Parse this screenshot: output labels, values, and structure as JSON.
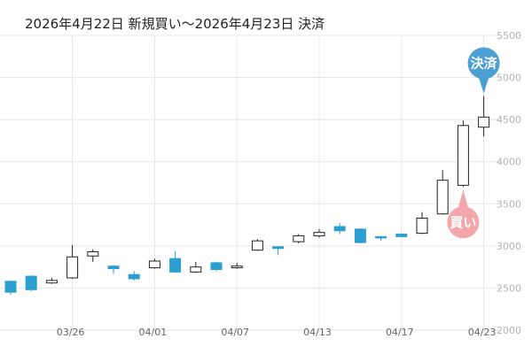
{
  "chart_data": {
    "type": "candlestick",
    "title": "2026年4月22日 新規買い～2026年4月23日 決済",
    "ylim": [
      1900,
      5700
    ],
    "yticks": [
      2000,
      2500,
      3000,
      3500,
      4000,
      4500,
      5000,
      5500
    ],
    "ytick_labels": [
      "2000",
      "2500",
      "3000",
      "3500",
      "4000",
      "4500",
      "5000",
      "5500"
    ],
    "xtick_labels": [
      {
        "label": "03/26",
        "index": 3
      },
      {
        "label": "04/01",
        "index": 7
      },
      {
        "label": "04/07",
        "index": 11
      },
      {
        "label": "04/13",
        "index": 15
      },
      {
        "label": "04/17",
        "index": 19
      },
      {
        "label": "04/23",
        "index": 23
      }
    ],
    "grid": true,
    "up_color": "#ffffff",
    "down_color": "#2a9fd0",
    "candles": [
      {
        "open": 2580,
        "high": 2590,
        "low": 2420,
        "close": 2450
      },
      {
        "open": 2640,
        "high": 2650,
        "low": 2460,
        "close": 2480
      },
      {
        "open": 2560,
        "high": 2620,
        "low": 2550,
        "close": 2590
      },
      {
        "open": 2620,
        "high": 3010,
        "low": 2610,
        "close": 2870
      },
      {
        "open": 2880,
        "high": 2960,
        "low": 2810,
        "close": 2930
      },
      {
        "open": 2760,
        "high": 2770,
        "low": 2670,
        "close": 2730
      },
      {
        "open": 2660,
        "high": 2700,
        "low": 2590,
        "close": 2610
      },
      {
        "open": 2740,
        "high": 2850,
        "low": 2730,
        "close": 2820
      },
      {
        "open": 2850,
        "high": 2940,
        "low": 2680,
        "close": 2690
      },
      {
        "open": 2690,
        "high": 2810,
        "low": 2680,
        "close": 2750
      },
      {
        "open": 2800,
        "high": 2810,
        "low": 2700,
        "close": 2720
      },
      {
        "open": 2740,
        "high": 2800,
        "low": 2730,
        "close": 2760
      },
      {
        "open": 2950,
        "high": 3080,
        "low": 2940,
        "close": 3060
      },
      {
        "open": 2990,
        "high": 3000,
        "low": 2890,
        "close": 2970
      },
      {
        "open": 3050,
        "high": 3140,
        "low": 3030,
        "close": 3120
      },
      {
        "open": 3120,
        "high": 3200,
        "low": 3100,
        "close": 3160
      },
      {
        "open": 3230,
        "high": 3270,
        "low": 3140,
        "close": 3180
      },
      {
        "open": 3200,
        "high": 3210,
        "low": 3030,
        "close": 3040
      },
      {
        "open": 3110,
        "high": 3120,
        "low": 3060,
        "close": 3100
      },
      {
        "open": 3140,
        "high": 3150,
        "low": 3100,
        "close": 3110
      },
      {
        "open": 3150,
        "high": 3400,
        "low": 3140,
        "close": 3330
      },
      {
        "open": 3380,
        "high": 3900,
        "low": 3370,
        "close": 3780
      },
      {
        "open": 3720,
        "high": 4490,
        "low": 3700,
        "close": 4430
      },
      {
        "open": 4410,
        "high": 4780,
        "low": 4300,
        "close": 4530
      }
    ],
    "markers": [
      {
        "label": "買い",
        "candle_index": 22,
        "placement": "below",
        "color": "#f4a6ab"
      },
      {
        "label": "決済",
        "candle_index": 23,
        "placement": "above",
        "color": "#4b9fd3"
      }
    ]
  }
}
